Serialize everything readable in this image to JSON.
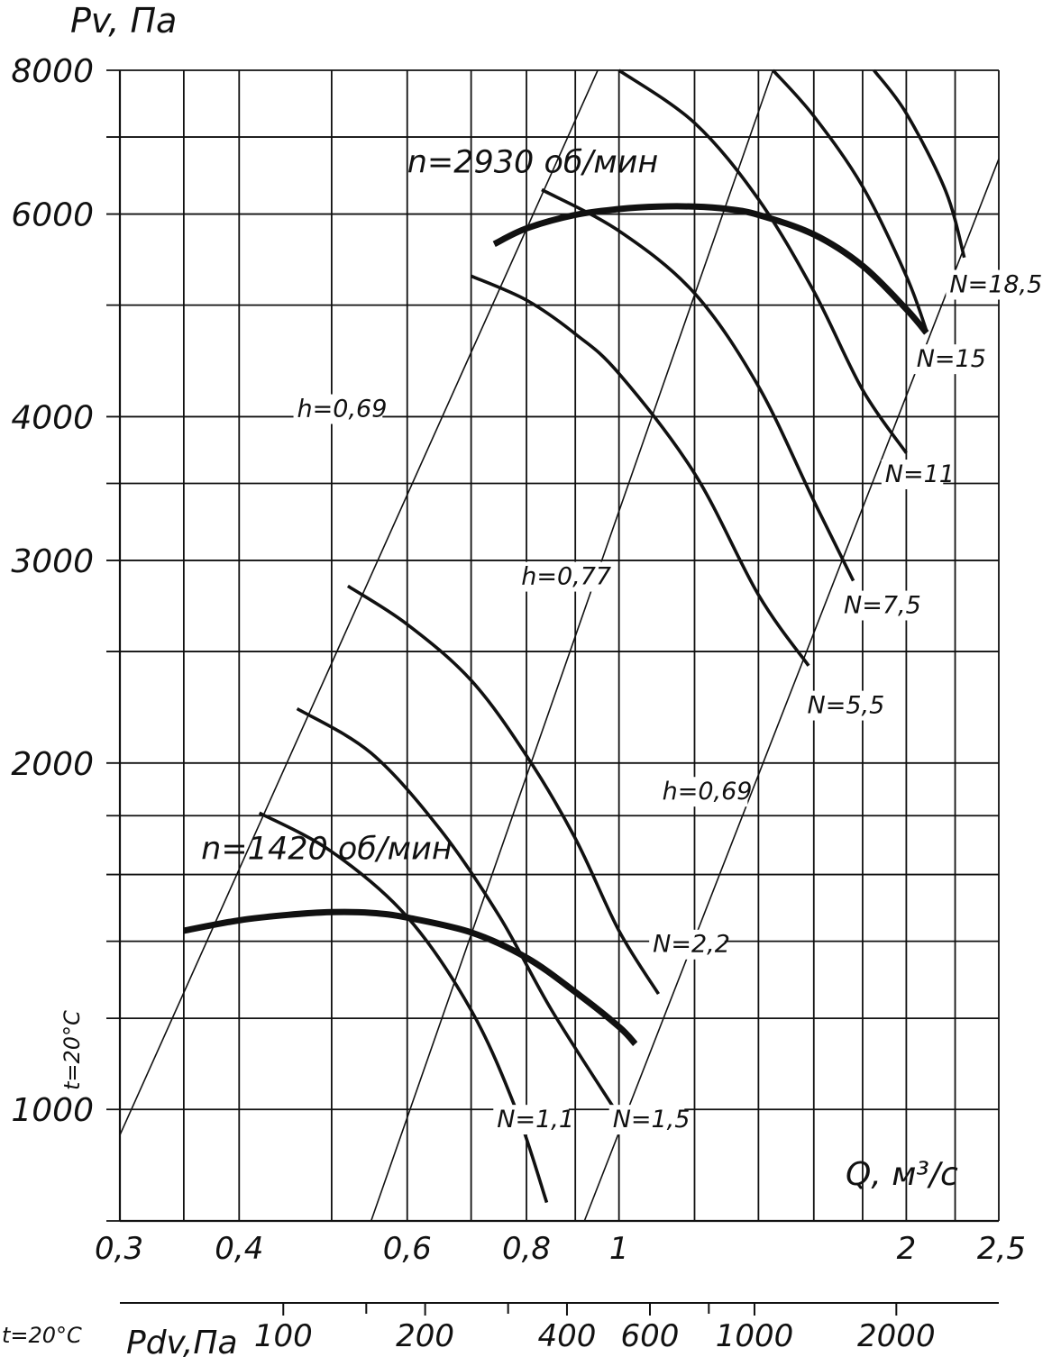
{
  "chart_data": {
    "type": "line",
    "scale": "log-log",
    "y_axis_title": "Pv, Па",
    "x_axis_title": "Q, м³/с",
    "secondary_x_axis_title": "Pdv,Па",
    "temperature_label": "t=20°C",
    "temperature_label_bottom": "t=20°C",
    "xlim": [
      0.3,
      2.5
    ],
    "ylim": [
      800,
      8000
    ],
    "x_ticks": [
      {
        "value": 0.3,
        "label": "0,3"
      },
      {
        "value": 0.4,
        "label": "0,4"
      },
      {
        "value": 0.6,
        "label": "0,6"
      },
      {
        "value": 0.8,
        "label": "0,8"
      },
      {
        "value": 1,
        "label": "1"
      },
      {
        "value": 2,
        "label": "2"
      },
      {
        "value": 2.5,
        "label": "2,5"
      }
    ],
    "x_gridlines": [
      0.3,
      0.35,
      0.4,
      0.5,
      0.6,
      0.7,
      0.8,
      0.9,
      1.0,
      1.2,
      1.4,
      1.6,
      1.8,
      2.0,
      2.25,
      2.5
    ],
    "y_ticks": [
      {
        "value": 1000,
        "label": "1000"
      },
      {
        "value": 2000,
        "label": "2000"
      },
      {
        "value": 3000,
        "label": "3000"
      },
      {
        "value": 4000,
        "label": "4000"
      },
      {
        "value": 6000,
        "label": "6000"
      },
      {
        "value": 8000,
        "label": "8000"
      }
    ],
    "y_gridlines": [
      800,
      1000,
      1200,
      1400,
      1600,
      1800,
      2000,
      2500,
      3000,
      3500,
      4000,
      5000,
      6000,
      7000,
      8000
    ],
    "secondary_x_axis": {
      "ticks": [
        {
          "value": 100,
          "label": "100"
        },
        {
          "value": 200,
          "label": "200"
        },
        {
          "value": 400,
          "label": "400"
        },
        {
          "value": 600,
          "label": "600"
        },
        {
          "value": 1000,
          "label": "1000"
        },
        {
          "value": 2000,
          "label": "2000"
        }
      ],
      "minor_ticks": [
        150,
        300,
        800
      ]
    },
    "fan_curves": [
      {
        "label": "n=1420 об/мин",
        "points": [
          [
            0.35,
            1430
          ],
          [
            0.4,
            1460
          ],
          [
            0.45,
            1476
          ],
          [
            0.5,
            1484
          ],
          [
            0.55,
            1482
          ],
          [
            0.6,
            1468
          ],
          [
            0.7,
            1425
          ],
          [
            0.8,
            1355
          ],
          [
            0.9,
            1265
          ],
          [
            1.0,
            1180
          ],
          [
            1.04,
            1140
          ]
        ]
      },
      {
        "label": "n=2930 об/мин",
        "points": [
          [
            0.74,
            5650
          ],
          [
            0.8,
            5830
          ],
          [
            0.9,
            5990
          ],
          [
            1.0,
            6060
          ],
          [
            1.1,
            6090
          ],
          [
            1.2,
            6090
          ],
          [
            1.3,
            6060
          ],
          [
            1.4,
            5990
          ],
          [
            1.6,
            5760
          ],
          [
            1.8,
            5410
          ],
          [
            2.0,
            4960
          ],
          [
            2.1,
            4730
          ]
        ]
      }
    ],
    "power_curves": [
      {
        "label": "N=1,1",
        "points": [
          [
            0.42,
            1810
          ],
          [
            0.5,
            1675
          ],
          [
            0.6,
            1470
          ],
          [
            0.7,
            1220
          ],
          [
            0.78,
            1000
          ],
          [
            0.84,
            830
          ]
        ]
      },
      {
        "label": "N=1,5",
        "points": [
          [
            0.46,
            2230
          ],
          [
            0.55,
            2040
          ],
          [
            0.65,
            1750
          ],
          [
            0.75,
            1470
          ],
          [
            0.85,
            1220
          ],
          [
            0.99,
            1000
          ]
        ]
      },
      {
        "label": "N=2,2",
        "points": [
          [
            0.52,
            2850
          ],
          [
            0.6,
            2640
          ],
          [
            0.7,
            2360
          ],
          [
            0.8,
            2030
          ],
          [
            0.9,
            1720
          ],
          [
            1.0,
            1430
          ],
          [
            1.1,
            1260
          ]
        ]
      },
      {
        "label": "N=5,5",
        "points": [
          [
            0.7,
            5300
          ],
          [
            0.8,
            5050
          ],
          [
            0.9,
            4720
          ],
          [
            1.0,
            4360
          ],
          [
            1.2,
            3570
          ],
          [
            1.4,
            2800
          ],
          [
            1.58,
            2430
          ]
        ]
      },
      {
        "label": "N=7,5",
        "points": [
          [
            0.83,
            6300
          ],
          [
            1.0,
            5800
          ],
          [
            1.2,
            5120
          ],
          [
            1.4,
            4250
          ],
          [
            1.6,
            3380
          ],
          [
            1.76,
            2880
          ]
        ]
      },
      {
        "label": "N=11",
        "points": [
          [
            1.0,
            8000
          ],
          [
            1.2,
            7200
          ],
          [
            1.4,
            6180
          ],
          [
            1.6,
            5140
          ],
          [
            1.8,
            4220
          ],
          [
            2.0,
            3720
          ]
        ]
      },
      {
        "label": "N=15",
        "points": [
          [
            1.45,
            8000
          ],
          [
            1.6,
            7300
          ],
          [
            1.8,
            6340
          ],
          [
            2.0,
            5300
          ],
          [
            2.1,
            4750
          ]
        ]
      },
      {
        "label": "N=18,5",
        "points": [
          [
            1.85,
            8000
          ],
          [
            2.0,
            7340
          ],
          [
            2.2,
            6280
          ],
          [
            2.3,
            5500
          ]
        ]
      }
    ],
    "efficiency_lines": [
      {
        "label": "h=0,69",
        "points": [
          [
            0.3,
            950
          ],
          [
            0.95,
            8000
          ]
        ]
      },
      {
        "label": "h=0,77",
        "points": [
          [
            0.55,
            800
          ],
          [
            1.45,
            8000
          ]
        ]
      },
      {
        "label": "h=0,69",
        "points": [
          [
            0.92,
            800
          ],
          [
            2.5,
            6700
          ]
        ]
      }
    ],
    "annotations": [
      "n=2930 об/мин",
      "n=1420 об/мин",
      "N=18,5",
      "N=15",
      "N=11",
      "N=7,5",
      "N=5,5",
      "N=2,2",
      "N=1,5",
      "N=1,1",
      "h=0,69",
      "h=0,77",
      "h=0,69"
    ]
  }
}
